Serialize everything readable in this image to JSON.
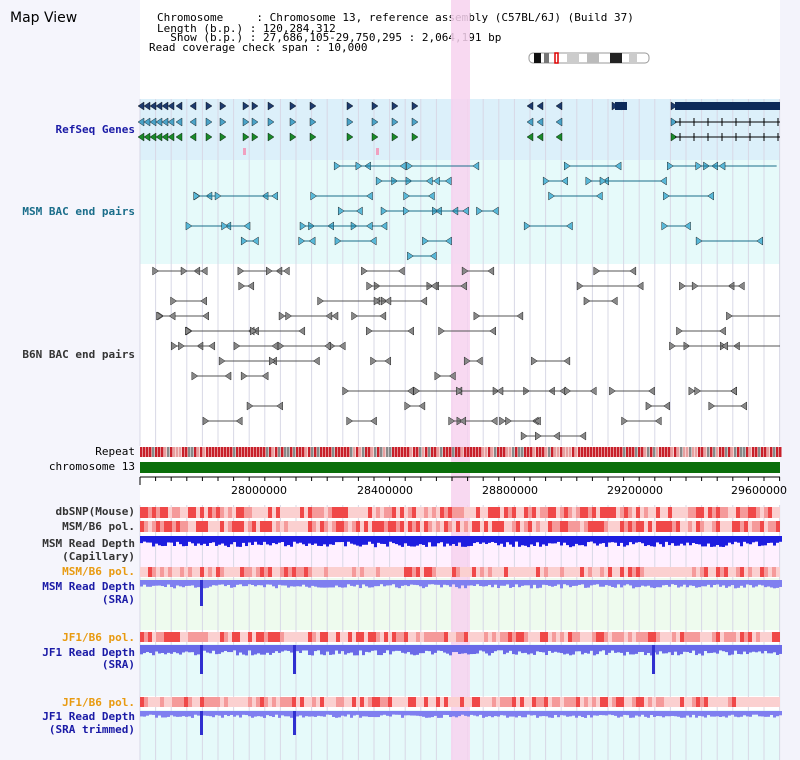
{
  "title": "Map View",
  "header": {
    "chromosome_line": "Chromosome     : Chromosome 13, reference assembly (C57BL/6J) (Build 37)",
    "length_line": "Length (b.p.) : 120,284,312",
    "show_line": "  Show (b.p.) : 27,686,105-29,750,295 : 2,064,191 bp",
    "coverage_line": "Read coverage check span : 10,000"
  },
  "tracks": {
    "refseq": "RefSeq Genes",
    "msm_bac": "MSM BAC end pairs",
    "b6n_bac": "B6N BAC end pairs",
    "repeat": "Repeat",
    "chromosome": "chromosome 13",
    "dbsnp": "dbSNP(Mouse)",
    "msm_b6_pol_1": "MSM/B6 pol.",
    "msm_depth_cap_1": "MSM Read Depth",
    "msm_depth_cap_2": "(Capillary)",
    "msm_b6_pol_2": "MSM/B6 pol.",
    "msm_depth_sra_1": "MSM Read Depth",
    "msm_depth_sra_2": "(SRA)",
    "jf1_b6_pol_1": "JF1/B6 pol.",
    "jf1_depth_sra_1": "JF1 Read Depth",
    "jf1_depth_sra_2": "(SRA)",
    "jf1_b6_pol_2": "JF1/B6 pol.",
    "jf1_depth_trim_1": "JF1 Read Depth",
    "jf1_depth_trim_2": "(SRA trimmed)"
  },
  "axis": {
    "ticks": [
      "28000000",
      "28400000",
      "28800000",
      "29200000",
      "29600000"
    ]
  },
  "colors": {
    "refseq_bg": "#dcf0fa",
    "msm_bac_bg": "#e6fafa",
    "highlight": "#f7d2ee",
    "chromosome_bar": "#0a6e0a",
    "depth_blue": "#1d1de0",
    "depth_light": "#7f7ff0",
    "pol_red": "#f04848"
  }
}
